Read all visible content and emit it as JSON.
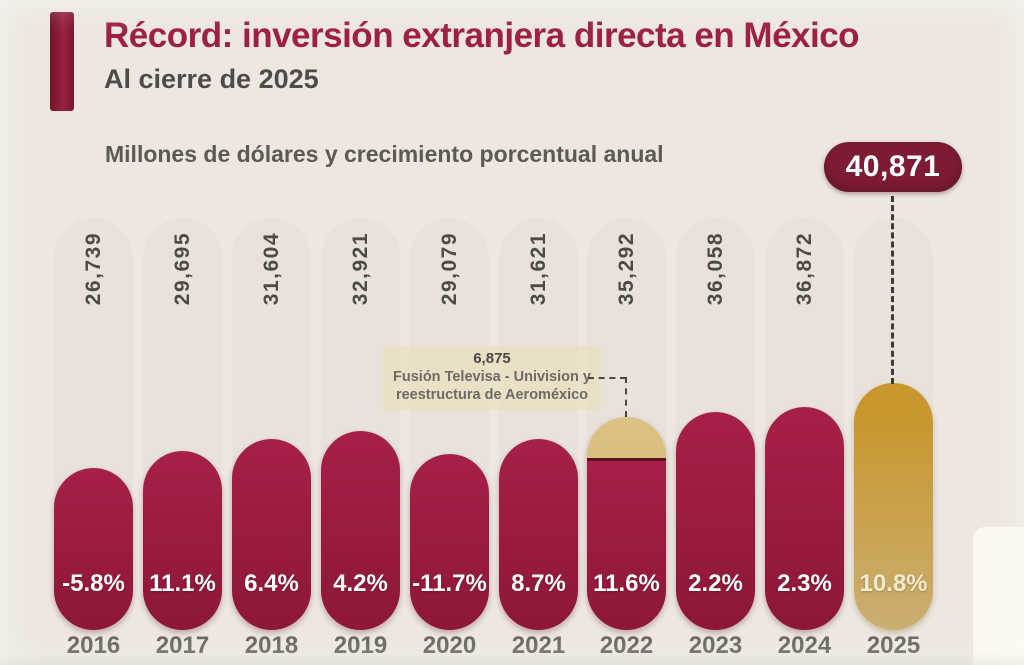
{
  "header": {
    "title": "Récord: inversión extranjera directa en México",
    "subtitle": "Al cierre de 2025",
    "units_label": "Millones de dólares y crecimiento porcentual anual",
    "record_badge_value": "40,871"
  },
  "annotation": {
    "value": "6,875",
    "line1": "Fusión Televisa - Univision y",
    "line2": "reestructura de Aeroméxico"
  },
  "colors": {
    "background": "#ede7e0",
    "track": "#e8e2db",
    "title": "#9d2040",
    "badge": "#7c1b31",
    "crimson_light": "#a62047",
    "crimson_dark": "#8d1736",
    "gold": "#c8982f",
    "gold_light": "#cbae72",
    "cap_gold_light": "#dcc286",
    "cap_gold": "#d2ae5c"
  },
  "chart_data": {
    "type": "bar",
    "title": "Récord: inversión extranjera directa en México — Al cierre de 2025",
    "subtitle": "Millones de dólares y crecimiento porcentual anual",
    "categories": [
      "2016",
      "2017",
      "2018",
      "2019",
      "2020",
      "2021",
      "2022",
      "2023",
      "2024",
      "2025"
    ],
    "values": [
      26739,
      29695,
      31604,
      32921,
      29079,
      31621,
      35292,
      36058,
      36872,
      40871
    ],
    "value_labels": [
      "26,739",
      "29,695",
      "31,604",
      "32,921",
      "29,079",
      "31,621",
      "35,292",
      "36,058",
      "36,872",
      "40,871"
    ],
    "growth_pct": [
      "-5.8%",
      "11.1%",
      "6.4%",
      "4.2%",
      "-11.7%",
      "8.7%",
      "11.6%",
      "2.2%",
      "2.3%",
      "10.8%"
    ],
    "highlight_year": "2025",
    "merger": {
      "year": "2022",
      "value": 6875,
      "label": "6,875"
    },
    "xlabel": "",
    "ylabel": "Millones de dólares",
    "ylim": [
      0,
      40871
    ],
    "grid": false,
    "legend": "none"
  }
}
